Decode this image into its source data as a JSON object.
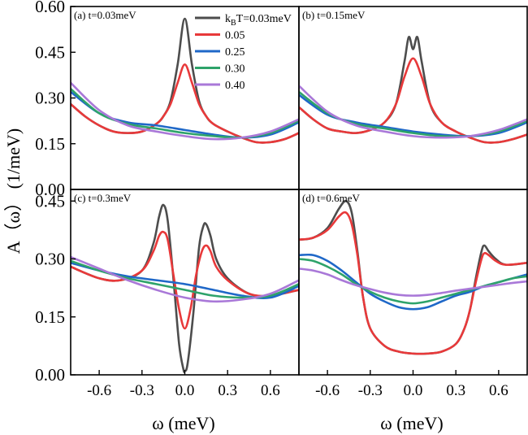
{
  "figure": {
    "ylabel": "A（ω） (1/meV)",
    "xlabel": "ω (meV)"
  },
  "colors": {
    "0.03": "#4d4d4d",
    "0.05": "#e8393a",
    "0.25": "#1f68c8",
    "0.30": "#2ea36a",
    "0.40": "#a978d8"
  },
  "chart_data": [
    {
      "type": "line",
      "panel": "a",
      "label": "(a)  t=0.03meV",
      "xlim": [
        -0.8,
        0.8
      ],
      "ylim": [
        0.0,
        0.6
      ],
      "yticks": [
        "0.00",
        "0.15",
        "0.30",
        "0.45",
        "0.60"
      ],
      "xticks": [],
      "legend": {
        "placement": "top-center",
        "entries": [
          "k_BT=0.03meV",
          "0.05",
          "0.25",
          "0.30",
          "0.40"
        ]
      },
      "series": [
        {
          "name": "k_BT=0.03meV",
          "color_key": "0.03",
          "x": [
            -0.8,
            -0.7,
            -0.6,
            -0.5,
            -0.4,
            -0.3,
            -0.2,
            -0.15,
            -0.1,
            -0.05,
            0,
            0.05,
            0.1,
            0.15,
            0.2,
            0.3,
            0.4,
            0.5,
            0.6,
            0.7,
            0.8
          ],
          "y": [
            0.28,
            0.24,
            0.21,
            0.19,
            0.185,
            0.19,
            0.215,
            0.24,
            0.29,
            0.41,
            0.56,
            0.41,
            0.29,
            0.24,
            0.215,
            0.19,
            0.17,
            0.155,
            0.155,
            0.165,
            0.185
          ]
        },
        {
          "name": "0.05",
          "color_key": "0.05",
          "x": [
            -0.8,
            -0.7,
            -0.6,
            -0.5,
            -0.4,
            -0.3,
            -0.2,
            -0.15,
            -0.1,
            -0.05,
            0,
            0.05,
            0.1,
            0.15,
            0.2,
            0.3,
            0.4,
            0.5,
            0.6,
            0.7,
            0.8
          ],
          "y": [
            0.28,
            0.24,
            0.21,
            0.19,
            0.185,
            0.19,
            0.215,
            0.24,
            0.28,
            0.35,
            0.41,
            0.35,
            0.28,
            0.24,
            0.215,
            0.19,
            0.17,
            0.155,
            0.155,
            0.165,
            0.185
          ]
        },
        {
          "name": "0.25",
          "color_key": "0.25",
          "x": [
            -0.8,
            -0.6,
            -0.4,
            -0.2,
            0,
            0.2,
            0.4,
            0.6,
            0.8
          ],
          "y": [
            0.32,
            0.25,
            0.22,
            0.21,
            0.195,
            0.18,
            0.17,
            0.18,
            0.22
          ]
        },
        {
          "name": "0.30",
          "color_key": "0.30",
          "x": [
            -0.8,
            -0.6,
            -0.4,
            -0.2,
            0,
            0.2,
            0.4,
            0.6,
            0.8
          ],
          "y": [
            0.33,
            0.25,
            0.215,
            0.2,
            0.185,
            0.175,
            0.17,
            0.185,
            0.225
          ]
        },
        {
          "name": "0.40",
          "color_key": "0.40",
          "x": [
            -0.8,
            -0.6,
            -0.4,
            -0.2,
            0,
            0.2,
            0.4,
            0.6,
            0.8
          ],
          "y": [
            0.35,
            0.26,
            0.21,
            0.19,
            0.175,
            0.165,
            0.17,
            0.19,
            0.23
          ]
        }
      ]
    },
    {
      "type": "line",
      "panel": "b",
      "label": "(b)  t=0.15meV",
      "xlim": [
        -0.8,
        0.8
      ],
      "ylim": [
        0.0,
        0.6
      ],
      "yticks": [],
      "xticks": [],
      "series": [
        {
          "name": "0.03",
          "color_key": "0.03",
          "x": [
            -0.8,
            -0.7,
            -0.6,
            -0.5,
            -0.4,
            -0.3,
            -0.2,
            -0.12,
            -0.06,
            -0.03,
            0,
            0.03,
            0.06,
            0.12,
            0.2,
            0.3,
            0.4,
            0.5,
            0.6,
            0.7,
            0.8
          ],
          "y": [
            0.27,
            0.23,
            0.2,
            0.19,
            0.185,
            0.195,
            0.22,
            0.28,
            0.42,
            0.5,
            0.46,
            0.5,
            0.42,
            0.28,
            0.22,
            0.19,
            0.17,
            0.155,
            0.155,
            0.165,
            0.18
          ]
        },
        {
          "name": "0.05",
          "color_key": "0.05",
          "x": [
            -0.8,
            -0.7,
            -0.6,
            -0.5,
            -0.4,
            -0.3,
            -0.2,
            -0.12,
            -0.06,
            0,
            0.06,
            0.12,
            0.2,
            0.3,
            0.4,
            0.5,
            0.6,
            0.7,
            0.8
          ],
          "y": [
            0.27,
            0.23,
            0.2,
            0.19,
            0.185,
            0.195,
            0.22,
            0.28,
            0.37,
            0.43,
            0.37,
            0.28,
            0.22,
            0.19,
            0.17,
            0.155,
            0.155,
            0.165,
            0.18
          ]
        },
        {
          "name": "0.25",
          "color_key": "0.25",
          "x": [
            -0.8,
            -0.6,
            -0.4,
            -0.2,
            0,
            0.2,
            0.4,
            0.6,
            0.8
          ],
          "y": [
            0.31,
            0.245,
            0.22,
            0.205,
            0.19,
            0.18,
            0.175,
            0.185,
            0.22
          ]
        },
        {
          "name": "0.30",
          "color_key": "0.30",
          "x": [
            -0.8,
            -0.6,
            -0.4,
            -0.2,
            0,
            0.2,
            0.4,
            0.6,
            0.8
          ],
          "y": [
            0.32,
            0.25,
            0.215,
            0.2,
            0.185,
            0.175,
            0.175,
            0.19,
            0.225
          ]
        },
        {
          "name": "0.40",
          "color_key": "0.40",
          "x": [
            -0.8,
            -0.6,
            -0.4,
            -0.2,
            0,
            0.2,
            0.4,
            0.6,
            0.8
          ],
          "y": [
            0.34,
            0.255,
            0.21,
            0.19,
            0.175,
            0.17,
            0.175,
            0.195,
            0.23
          ]
        }
      ]
    },
    {
      "type": "line",
      "panel": "c",
      "label": "(c)  t=0.3meV",
      "xlim": [
        -0.8,
        0.8
      ],
      "ylim": [
        0.0,
        0.48
      ],
      "yticks": [
        "0.00",
        "0.15",
        "0.30",
        "0.45"
      ],
      "xticks": [
        "-0.6",
        "-0.3",
        "0.0",
        "0.3",
        "0.6"
      ],
      "series": [
        {
          "name": "0.03",
          "color_key": "0.03",
          "x": [
            -0.8,
            -0.6,
            -0.45,
            -0.3,
            -0.22,
            -0.18,
            -0.15,
            -0.12,
            -0.08,
            -0.04,
            -0.01,
            0,
            0.02,
            0.06,
            0.1,
            0.13,
            0.15,
            0.18,
            0.22,
            0.3,
            0.45,
            0.6,
            0.8
          ],
          "y": [
            0.28,
            0.25,
            0.245,
            0.27,
            0.34,
            0.41,
            0.44,
            0.4,
            0.25,
            0.08,
            0.015,
            0.01,
            0.03,
            0.16,
            0.33,
            0.385,
            0.39,
            0.36,
            0.3,
            0.25,
            0.21,
            0.205,
            0.22
          ]
        },
        {
          "name": "0.05",
          "color_key": "0.05",
          "x": [
            -0.8,
            -0.6,
            -0.45,
            -0.3,
            -0.22,
            -0.18,
            -0.15,
            -0.12,
            -0.08,
            -0.04,
            0,
            0.04,
            0.08,
            0.12,
            0.15,
            0.18,
            0.22,
            0.3,
            0.45,
            0.6,
            0.8
          ],
          "y": [
            0.28,
            0.25,
            0.245,
            0.27,
            0.32,
            0.36,
            0.37,
            0.35,
            0.26,
            0.17,
            0.12,
            0.17,
            0.26,
            0.32,
            0.335,
            0.32,
            0.28,
            0.245,
            0.21,
            0.205,
            0.22
          ]
        },
        {
          "name": "0.25",
          "color_key": "0.25",
          "x": [
            -0.8,
            -0.6,
            -0.4,
            -0.2,
            0,
            0.2,
            0.4,
            0.6,
            0.8
          ],
          "y": [
            0.29,
            0.27,
            0.255,
            0.245,
            0.235,
            0.22,
            0.205,
            0.2,
            0.23
          ]
        },
        {
          "name": "0.30",
          "color_key": "0.30",
          "x": [
            -0.8,
            -0.6,
            -0.4,
            -0.2,
            0,
            0.2,
            0.4,
            0.6,
            0.8
          ],
          "y": [
            0.295,
            0.27,
            0.25,
            0.235,
            0.22,
            0.205,
            0.2,
            0.205,
            0.235
          ]
        },
        {
          "name": "0.40",
          "color_key": "0.40",
          "x": [
            -0.8,
            -0.6,
            -0.4,
            -0.2,
            0,
            0.2,
            0.4,
            0.6,
            0.8
          ],
          "y": [
            0.305,
            0.275,
            0.245,
            0.22,
            0.2,
            0.19,
            0.195,
            0.21,
            0.245
          ]
        }
      ]
    },
    {
      "type": "line",
      "panel": "d",
      "label": "(d)  t=0.6meV",
      "xlim": [
        -0.8,
        0.8
      ],
      "ylim": [
        0.0,
        0.48
      ],
      "yticks": [],
      "xticks": [
        "-0.6",
        "-0.3",
        "0.0",
        "0.3",
        "0.6"
      ],
      "series": [
        {
          "name": "0.03",
          "color_key": "0.03",
          "x": [
            -0.8,
            -0.7,
            -0.6,
            -0.52,
            -0.47,
            -0.43,
            -0.39,
            -0.35,
            -0.3,
            -0.2,
            -0.1,
            0,
            0.1,
            0.2,
            0.3,
            0.36,
            0.4,
            0.44,
            0.48,
            0.5,
            0.53,
            0.58,
            0.65,
            0.8
          ],
          "y": [
            0.35,
            0.355,
            0.38,
            0.43,
            0.45,
            0.42,
            0.32,
            0.2,
            0.12,
            0.075,
            0.06,
            0.055,
            0.055,
            0.06,
            0.08,
            0.12,
            0.17,
            0.25,
            0.32,
            0.335,
            0.32,
            0.3,
            0.285,
            0.29
          ]
        },
        {
          "name": "0.05",
          "color_key": "0.05",
          "x": [
            -0.8,
            -0.7,
            -0.6,
            -0.52,
            -0.47,
            -0.43,
            -0.39,
            -0.35,
            -0.3,
            -0.2,
            -0.1,
            0,
            0.1,
            0.2,
            0.3,
            0.36,
            0.4,
            0.44,
            0.48,
            0.5,
            0.53,
            0.58,
            0.65,
            0.8
          ],
          "y": [
            0.35,
            0.355,
            0.375,
            0.41,
            0.42,
            0.39,
            0.31,
            0.2,
            0.12,
            0.075,
            0.06,
            0.055,
            0.055,
            0.06,
            0.08,
            0.12,
            0.17,
            0.24,
            0.3,
            0.315,
            0.31,
            0.295,
            0.285,
            0.29
          ]
        },
        {
          "name": "0.25",
          "color_key": "0.25",
          "x": [
            -0.8,
            -0.7,
            -0.6,
            -0.5,
            -0.4,
            -0.3,
            -0.2,
            -0.1,
            0,
            0.1,
            0.2,
            0.3,
            0.4,
            0.5,
            0.6,
            0.7,
            0.8
          ],
          "y": [
            0.31,
            0.31,
            0.295,
            0.27,
            0.24,
            0.21,
            0.19,
            0.175,
            0.17,
            0.175,
            0.19,
            0.205,
            0.215,
            0.23,
            0.24,
            0.25,
            0.26
          ]
        },
        {
          "name": "0.30",
          "color_key": "0.30",
          "x": [
            -0.8,
            -0.7,
            -0.6,
            -0.5,
            -0.4,
            -0.3,
            -0.2,
            -0.1,
            0,
            0.1,
            0.2,
            0.3,
            0.4,
            0.5,
            0.6,
            0.7,
            0.8
          ],
          "y": [
            0.3,
            0.295,
            0.28,
            0.26,
            0.235,
            0.215,
            0.2,
            0.19,
            0.185,
            0.19,
            0.2,
            0.21,
            0.22,
            0.23,
            0.24,
            0.25,
            0.255
          ]
        },
        {
          "name": "0.40",
          "color_key": "0.40",
          "x": [
            -0.8,
            -0.7,
            -0.6,
            -0.5,
            -0.4,
            -0.3,
            -0.2,
            -0.1,
            0,
            0.1,
            0.2,
            0.3,
            0.4,
            0.5,
            0.6,
            0.7,
            0.8
          ],
          "y": [
            0.275,
            0.27,
            0.26,
            0.245,
            0.232,
            0.222,
            0.213,
            0.207,
            0.205,
            0.207,
            0.212,
            0.218,
            0.223,
            0.228,
            0.233,
            0.238,
            0.242
          ]
        }
      ]
    }
  ]
}
